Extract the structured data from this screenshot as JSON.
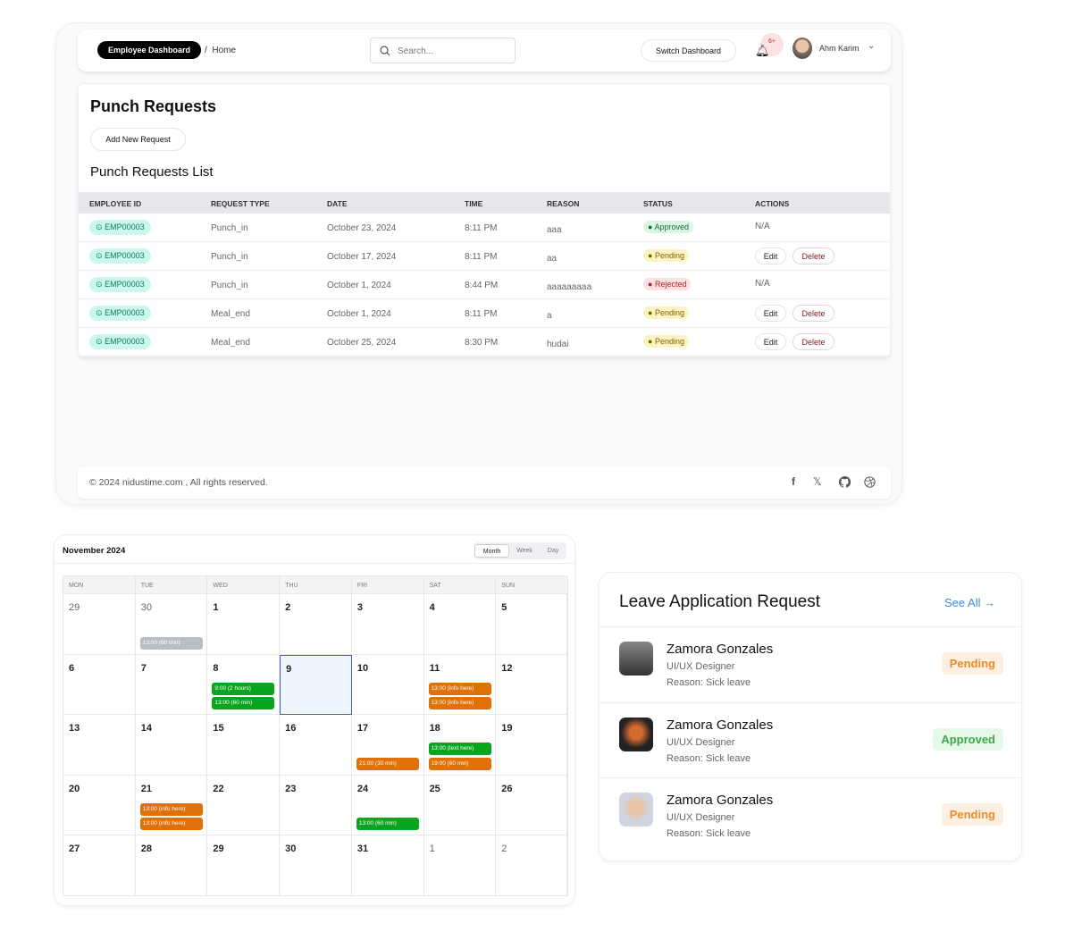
{
  "header": {
    "dashboard_label": "Employee Dashboard",
    "breadcrumb_sep": "/",
    "breadcrumb_home": "Home",
    "search_placeholder": "Search...",
    "switch_label": "Switch Dashboard",
    "notif_count": "6+",
    "user_name": "Ahm Karim"
  },
  "page": {
    "title": "Punch Requests",
    "add_label": "Add New Request",
    "list_title": "Punch Requests List"
  },
  "table": {
    "headers": [
      "EMPLOYEE ID",
      "REQUEST TYPE",
      "DATE",
      "TIME",
      "REASON",
      "STATUS",
      "ACTIONS"
    ],
    "rows": [
      {
        "emp": "EMP00003",
        "type": "Punch_in",
        "date": "October 23, 2024",
        "time": "8:11 PM",
        "reason": "aaa",
        "status": "Approved",
        "actions": "N/A"
      },
      {
        "emp": "EMP00003",
        "type": "Punch_in",
        "date": "October 17, 2024",
        "time": "8:11 PM",
        "reason": "aa",
        "status": "Pending",
        "edit": "Edit",
        "delete": "Delete"
      },
      {
        "emp": "EMP00003",
        "type": "Punch_in",
        "date": "October 1, 2024",
        "time": "8:44 PM",
        "reason": "aaaaaaaaa",
        "status": "Rejected",
        "actions": "N/A"
      },
      {
        "emp": "EMP00003",
        "type": "Meal_end",
        "date": "October 1, 2024",
        "time": "8:11 PM",
        "reason": "a",
        "status": "Pending",
        "edit": "Edit",
        "delete": "Delete"
      },
      {
        "emp": "EMP00003",
        "type": "Meal_end",
        "date": "October 25, 2024",
        "time": "8:30 PM",
        "reason": "hudai",
        "status": "Pending",
        "edit": "Edit",
        "delete": "Delete"
      }
    ]
  },
  "footer": {
    "copyright": "© 2024 nidustime.com , All rights reserved.",
    "social": [
      "facebook-icon",
      "x-icon",
      "github-icon",
      "dribbble-icon"
    ]
  },
  "calendar": {
    "title": "November 2024",
    "views": [
      "Month",
      "Week",
      "Day"
    ],
    "active_view": "Month",
    "weekdays": [
      "MON",
      "TUE",
      "WED",
      "THU",
      "FRI",
      "SAT",
      "SUN"
    ],
    "weeks": [
      [
        "29",
        "30",
        "1",
        "2",
        "3",
        "4",
        "5"
      ],
      [
        "6",
        "7",
        "8",
        "9",
        "10",
        "11",
        "12"
      ],
      [
        "13",
        "14",
        "15",
        "16",
        "17",
        "18",
        "19"
      ],
      [
        "20",
        "21",
        "22",
        "23",
        "24",
        "25",
        "26"
      ],
      [
        "27",
        "28",
        "29",
        "30",
        "31",
        "1",
        "2"
      ]
    ],
    "other_month": [
      [
        0,
        0
      ],
      [
        0,
        1
      ],
      [
        4,
        5
      ],
      [
        4,
        6
      ]
    ],
    "today": [
      1,
      3
    ],
    "events": [
      {
        "week": 0,
        "day": 1,
        "slot": 1,
        "label": "13:00 (60 min)",
        "color": "#b8bec6"
      },
      {
        "week": 1,
        "day": 2,
        "slot": 0,
        "label": "9:00 (2 hours)",
        "color": "#0aa51f"
      },
      {
        "week": 1,
        "day": 2,
        "slot": 1,
        "label": "13:00 (60 min)",
        "color": "#0aa51f"
      },
      {
        "week": 1,
        "day": 5,
        "slot": 0,
        "label": "13:00 (info here)",
        "color": "#e07008"
      },
      {
        "week": 1,
        "day": 5,
        "slot": 1,
        "label": "13:00 (info here)",
        "color": "#e07008"
      },
      {
        "week": 2,
        "day": 4,
        "slot": 1,
        "label": "21:00 (30 min)",
        "color": "#e07008"
      },
      {
        "week": 2,
        "day": 5,
        "slot": 0,
        "label": "13:00 (text here)",
        "color": "#0aa51f"
      },
      {
        "week": 2,
        "day": 5,
        "slot": 1,
        "label": "19:00 (60 min)",
        "color": "#e07008"
      },
      {
        "week": 3,
        "day": 1,
        "slot": 0,
        "label": "13:00 (info here)",
        "color": "#e07008"
      },
      {
        "week": 3,
        "day": 1,
        "slot": 1,
        "label": "13:00 (info here)",
        "color": "#e07008"
      },
      {
        "week": 3,
        "day": 4,
        "slot": 1,
        "label": "13:00 (60 min)",
        "color": "#0aa51f"
      }
    ]
  },
  "leave": {
    "title": "Leave Application Request",
    "see_all": "See All →",
    "items": [
      {
        "name": "Zamora Gonzales",
        "role": "UI/UX Designer",
        "reason": "Reason: Sick leave",
        "status": "Pending"
      },
      {
        "name": "Zamora Gonzales",
        "role": "UI/UX Designer",
        "reason": "Reason: Sick leave",
        "status": "Approved"
      },
      {
        "name": "Zamora Gonzales",
        "role": "UI/UX Designer",
        "reason": "Reason: Sick leave",
        "status": "Pending"
      }
    ]
  }
}
